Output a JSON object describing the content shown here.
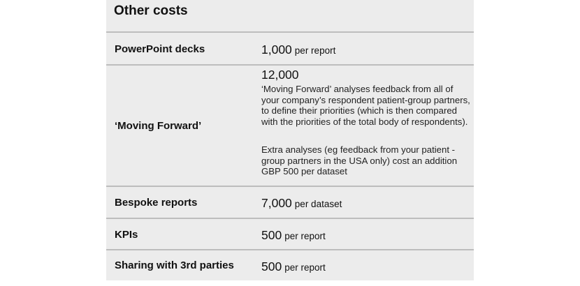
{
  "title": "Other costs",
  "rows": [
    {
      "label": "PowerPoint decks",
      "value": "1,000",
      "unit": "per report"
    },
    {
      "label": "‘Moving Forward’",
      "value": "12,000",
      "paragraphs": [
        "‘Moving Forward’ analyses feedback from all of your company’s respondent patient-group partners, to define their priorities (which is then compared with the priorities of the total body of respondents).",
        "Extra analyses (eg feedback from your patient -group partners in the USA only) cost an addition GBP 500 per dataset"
      ]
    },
    {
      "label": "Bespoke reports",
      "value": "7,000",
      "unit": "per dataset"
    },
    {
      "label": "KPIs",
      "value": "500",
      "unit": "per report"
    },
    {
      "label": "Sharing with 3rd parties",
      "value": "500",
      "unit": "per report"
    }
  ]
}
